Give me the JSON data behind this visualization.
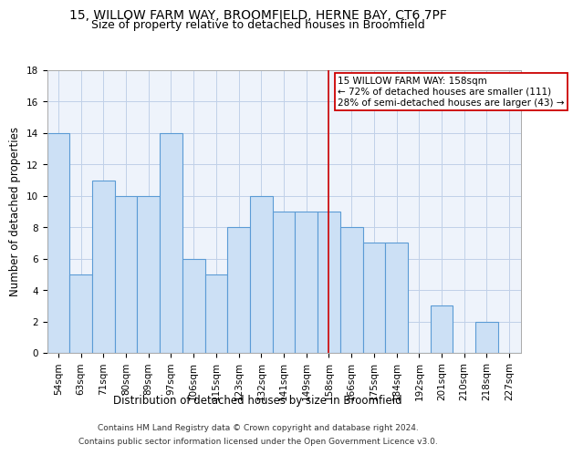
{
  "title_line1": "15, WILLOW FARM WAY, BROOMFIELD, HERNE BAY, CT6 7PF",
  "title_line2": "Size of property relative to detached houses in Broomfield",
  "xlabel": "Distribution of detached houses by size in Broomfield",
  "ylabel": "Number of detached properties",
  "categories": [
    "54sqm",
    "63sqm",
    "71sqm",
    "80sqm",
    "89sqm",
    "97sqm",
    "106sqm",
    "115sqm",
    "123sqm",
    "132sqm",
    "141sqm",
    "149sqm",
    "158sqm",
    "166sqm",
    "175sqm",
    "184sqm",
    "192sqm",
    "201sqm",
    "210sqm",
    "218sqm",
    "227sqm"
  ],
  "values": [
    14,
    5,
    11,
    10,
    10,
    14,
    6,
    5,
    8,
    10,
    9,
    9,
    9,
    8,
    7,
    7,
    0,
    3,
    0,
    2,
    0
  ],
  "bar_color": "#cce0f5",
  "bar_edge_color": "#5b9bd5",
  "marker_index": 12,
  "marker_color": "#cc0000",
  "annotation_title": "15 WILLOW FARM WAY: 158sqm",
  "annotation_line1": "← 72% of detached houses are smaller (111)",
  "annotation_line2": "28% of semi-detached houses are larger (43) →",
  "annotation_box_color": "#ffffff",
  "annotation_box_edge_color": "#cc0000",
  "ylim": [
    0,
    18
  ],
  "yticks": [
    0,
    2,
    4,
    6,
    8,
    10,
    12,
    14,
    16,
    18
  ],
  "grid_color": "#c0d0e8",
  "background_color": "#eef3fb",
  "footer_line1": "Contains HM Land Registry data © Crown copyright and database right 2024.",
  "footer_line2": "Contains public sector information licensed under the Open Government Licence v3.0.",
  "title_fontsize": 10,
  "subtitle_fontsize": 9,
  "axis_label_fontsize": 8.5,
  "tick_fontsize": 7.5,
  "footer_fontsize": 6.5,
  "annot_fontsize": 7.5
}
